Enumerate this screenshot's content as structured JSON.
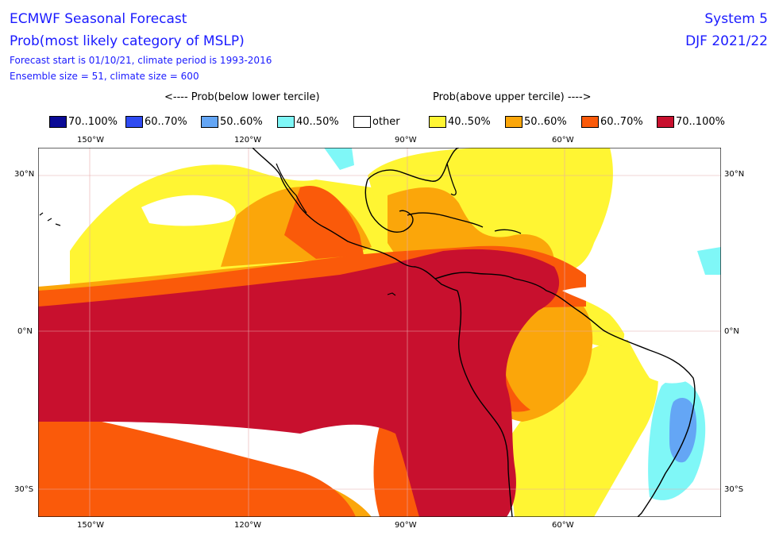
{
  "header": {
    "title": "ECMWF Seasonal Forecast",
    "subtitle": "Prob(most likely category of MSLP)",
    "line3": "Forecast start is 01/10/21, climate period is 1993-2016",
    "line4": "Ensemble size = 51, climate size = 600",
    "system": "System 5",
    "season": "DJF 2021/22"
  },
  "tercile_headers": {
    "below": "<---- Prob(below lower tercile)",
    "above": "Prob(above upper tercile) ---->"
  },
  "legend": [
    {
      "label": "70..100%",
      "color": "#0a0a96"
    },
    {
      "label": "60..70%",
      "color": "#2f4bf2"
    },
    {
      "label": "50..60%",
      "color": "#64a6f5"
    },
    {
      "label": "40..50%",
      "color": "#7ff7f7"
    },
    {
      "label": "other",
      "color": "#ffffff"
    },
    {
      "label": "40..50%",
      "color": "#fff533"
    },
    {
      "label": "50..60%",
      "color": "#fba60a"
    },
    {
      "label": "60..70%",
      "color": "#fa5a0a"
    },
    {
      "label": "70..100%",
      "color": "#c8102e"
    }
  ],
  "axes": {
    "lon_labels": [
      "150°W",
      "120°W",
      "90°W",
      "60°W"
    ],
    "lat_labels_left": [
      "30°N",
      "0°N",
      "30°S"
    ],
    "lat_labels_right": [
      "30°N",
      "0°N",
      "30°S"
    ]
  }
}
